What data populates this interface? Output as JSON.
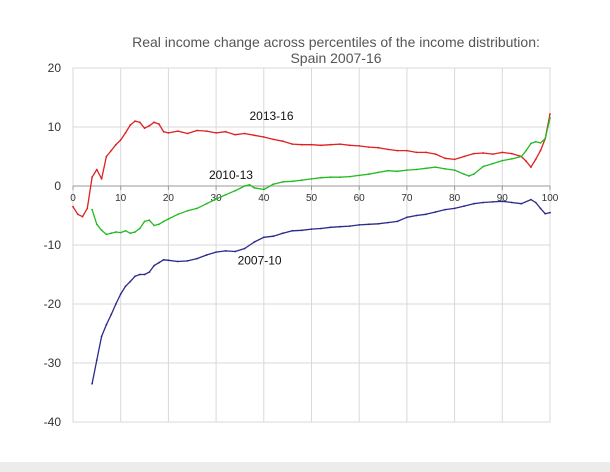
{
  "chart_data": {
    "type": "line",
    "title": [
      "Real income change across percentiles of the income distribution:",
      "Spain 2007-16"
    ],
    "xlabel": "",
    "ylabel": "",
    "xlim": [
      0,
      100
    ],
    "ylim": [
      -40,
      20
    ],
    "x_ticks": [
      0,
      10,
      20,
      30,
      40,
      50,
      60,
      70,
      80,
      90,
      100
    ],
    "y_ticks": [
      20,
      10,
      0,
      -10,
      -20,
      -30,
      -40
    ],
    "grid": true,
    "legend": "none",
    "series": [
      {
        "name": "2013-16",
        "color": "#e02020",
        "label_at": [
          37,
          11.2
        ],
        "points": [
          [
            0,
            -3.5
          ],
          [
            1,
            -4.8
          ],
          [
            2,
            -5.2
          ],
          [
            3,
            -3.8
          ],
          [
            4,
            1.5
          ],
          [
            5,
            2.8
          ],
          [
            6,
            1.2
          ],
          [
            7,
            5.0
          ],
          [
            8,
            6.0
          ],
          [
            9,
            7.0
          ],
          [
            10,
            7.8
          ],
          [
            11,
            9.0
          ],
          [
            12,
            10.3
          ],
          [
            13,
            11.0
          ],
          [
            14,
            10.8
          ],
          [
            15,
            9.8
          ],
          [
            16,
            10.2
          ],
          [
            17,
            10.8
          ],
          [
            18,
            10.5
          ],
          [
            19,
            9.2
          ],
          [
            20,
            9.0
          ],
          [
            22,
            9.3
          ],
          [
            24,
            8.9
          ],
          [
            26,
            9.4
          ],
          [
            28,
            9.3
          ],
          [
            30,
            9.0
          ],
          [
            32,
            9.2
          ],
          [
            34,
            8.7
          ],
          [
            36,
            8.9
          ],
          [
            38,
            8.6
          ],
          [
            40,
            8.3
          ],
          [
            42,
            7.9
          ],
          [
            44,
            7.6
          ],
          [
            46,
            7.1
          ],
          [
            48,
            7.0
          ],
          [
            50,
            7.0
          ],
          [
            52,
            6.9
          ],
          [
            54,
            7.0
          ],
          [
            56,
            7.1
          ],
          [
            58,
            6.9
          ],
          [
            60,
            6.8
          ],
          [
            62,
            6.6
          ],
          [
            64,
            6.5
          ],
          [
            66,
            6.2
          ],
          [
            68,
            6.0
          ],
          [
            70,
            6.0
          ],
          [
            72,
            5.7
          ],
          [
            74,
            5.7
          ],
          [
            76,
            5.4
          ],
          [
            78,
            4.7
          ],
          [
            80,
            4.5
          ],
          [
            82,
            5.0
          ],
          [
            84,
            5.5
          ],
          [
            86,
            5.6
          ],
          [
            88,
            5.4
          ],
          [
            90,
            5.7
          ],
          [
            92,
            5.5
          ],
          [
            94,
            5.0
          ],
          [
            95,
            4.2
          ],
          [
            96,
            3.2
          ],
          [
            97,
            4.5
          ],
          [
            98,
            6.0
          ],
          [
            99,
            8.0
          ],
          [
            100,
            12.2
          ]
        ]
      },
      {
        "name": "2010-13",
        "color": "#22bb22",
        "label_at": [
          28.5,
          1.2
        ],
        "points": [
          [
            4,
            -4.0
          ],
          [
            5,
            -6.5
          ],
          [
            6,
            -7.5
          ],
          [
            7,
            -8.2
          ],
          [
            8,
            -8.0
          ],
          [
            9,
            -7.8
          ],
          [
            10,
            -7.9
          ],
          [
            11,
            -7.6
          ],
          [
            12,
            -8.0
          ],
          [
            13,
            -7.8
          ],
          [
            14,
            -7.2
          ],
          [
            15,
            -6.0
          ],
          [
            16,
            -5.8
          ],
          [
            17,
            -6.7
          ],
          [
            18,
            -6.5
          ],
          [
            19,
            -6.0
          ],
          [
            20,
            -5.6
          ],
          [
            22,
            -4.8
          ],
          [
            24,
            -4.2
          ],
          [
            26,
            -3.8
          ],
          [
            28,
            -3.0
          ],
          [
            30,
            -2.2
          ],
          [
            32,
            -1.5
          ],
          [
            34,
            -0.8
          ],
          [
            36,
            0.0
          ],
          [
            37,
            0.2
          ],
          [
            38,
            -0.3
          ],
          [
            40,
            -0.6
          ],
          [
            42,
            0.3
          ],
          [
            44,
            0.7
          ],
          [
            46,
            0.8
          ],
          [
            48,
            1.0
          ],
          [
            50,
            1.2
          ],
          [
            52,
            1.4
          ],
          [
            54,
            1.5
          ],
          [
            56,
            1.5
          ],
          [
            58,
            1.6
          ],
          [
            60,
            1.8
          ],
          [
            62,
            2.0
          ],
          [
            64,
            2.3
          ],
          [
            66,
            2.6
          ],
          [
            68,
            2.5
          ],
          [
            70,
            2.7
          ],
          [
            72,
            2.8
          ],
          [
            74,
            3.0
          ],
          [
            76,
            3.2
          ],
          [
            78,
            2.9
          ],
          [
            80,
            2.7
          ],
          [
            82,
            2.0
          ],
          [
            83,
            1.7
          ],
          [
            84,
            2.0
          ],
          [
            86,
            3.3
          ],
          [
            88,
            3.8
          ],
          [
            90,
            4.3
          ],
          [
            92,
            4.6
          ],
          [
            94,
            5.0
          ],
          [
            95,
            6.0
          ],
          [
            96,
            7.2
          ],
          [
            97,
            7.5
          ],
          [
            98,
            7.3
          ],
          [
            99,
            8.0
          ],
          [
            100,
            11.5
          ]
        ]
      },
      {
        "name": "2007-10",
        "color": "#2a2a8a",
        "label_at": [
          34.5,
          -13.3
        ],
        "points": [
          [
            4,
            -33.5
          ],
          [
            5,
            -29.5
          ],
          [
            6,
            -25.5
          ],
          [
            7,
            -23.5
          ],
          [
            8,
            -21.8
          ],
          [
            9,
            -20.0
          ],
          [
            10,
            -18.3
          ],
          [
            11,
            -17.0
          ],
          [
            12,
            -16.2
          ],
          [
            13,
            -15.3
          ],
          [
            14,
            -15.0
          ],
          [
            15,
            -15.0
          ],
          [
            16,
            -14.6
          ],
          [
            17,
            -13.5
          ],
          [
            18,
            -13.0
          ],
          [
            19,
            -12.5
          ],
          [
            20,
            -12.6
          ],
          [
            22,
            -12.8
          ],
          [
            24,
            -12.7
          ],
          [
            26,
            -12.3
          ],
          [
            28,
            -11.7
          ],
          [
            30,
            -11.2
          ],
          [
            32,
            -11.0
          ],
          [
            34,
            -11.1
          ],
          [
            36,
            -10.6
          ],
          [
            38,
            -9.5
          ],
          [
            40,
            -8.7
          ],
          [
            42,
            -8.5
          ],
          [
            44,
            -8.0
          ],
          [
            46,
            -7.6
          ],
          [
            48,
            -7.5
          ],
          [
            50,
            -7.3
          ],
          [
            52,
            -7.2
          ],
          [
            54,
            -7.0
          ],
          [
            56,
            -6.9
          ],
          [
            58,
            -6.8
          ],
          [
            60,
            -6.6
          ],
          [
            62,
            -6.5
          ],
          [
            64,
            -6.4
          ],
          [
            66,
            -6.2
          ],
          [
            68,
            -6.0
          ],
          [
            70,
            -5.3
          ],
          [
            72,
            -5.0
          ],
          [
            74,
            -4.8
          ],
          [
            76,
            -4.4
          ],
          [
            78,
            -4.0
          ],
          [
            80,
            -3.8
          ],
          [
            82,
            -3.4
          ],
          [
            84,
            -3.0
          ],
          [
            86,
            -2.8
          ],
          [
            88,
            -2.7
          ],
          [
            90,
            -2.6
          ],
          [
            92,
            -2.8
          ],
          [
            94,
            -3.0
          ],
          [
            96,
            -2.3
          ],
          [
            97,
            -2.8
          ],
          [
            98,
            -3.8
          ],
          [
            99,
            -4.7
          ],
          [
            100,
            -4.5
          ]
        ]
      }
    ]
  }
}
